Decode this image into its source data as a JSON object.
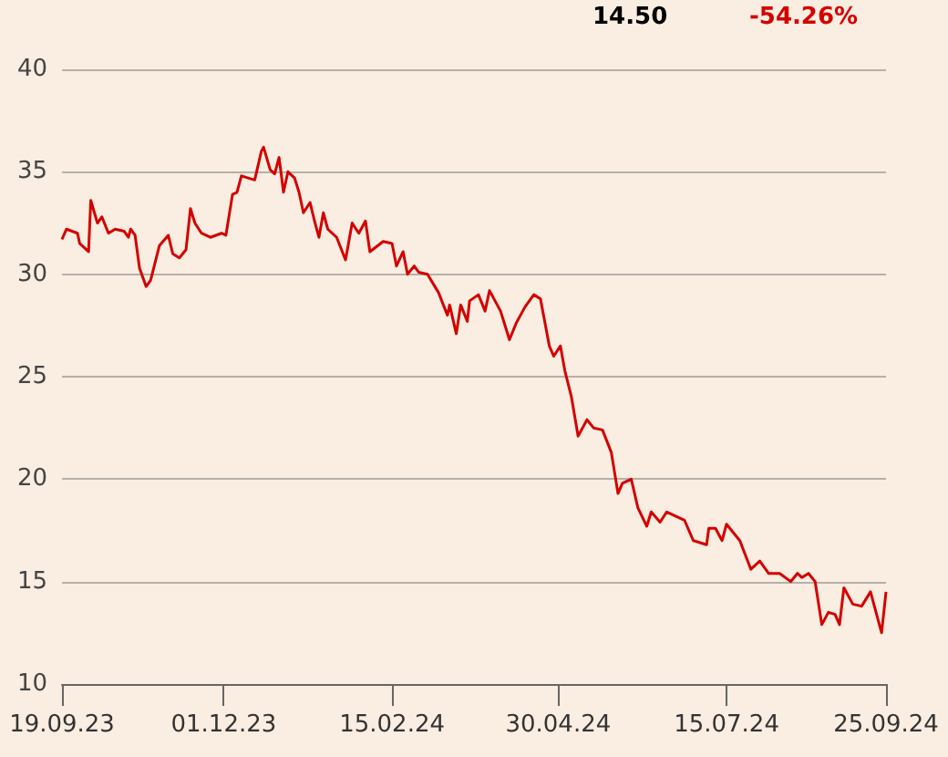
{
  "chart_data": {
    "type": "line",
    "annotations": [
      "14.50",
      "-54.26%"
    ],
    "xlim": [
      "2023-09-19",
      "2024-09-25"
    ],
    "xticks": [
      {
        "value": "2023-09-19",
        "label": "19.09.23"
      },
      {
        "value": "2023-12-01",
        "label": "01.12.23"
      },
      {
        "value": "2024-02-15",
        "label": "15.02.24"
      },
      {
        "value": "2024-04-30",
        "label": "30.04.24"
      },
      {
        "value": "2024-07-15",
        "label": "15.07.24"
      },
      {
        "value": "2024-09-25",
        "label": "25.09.24"
      }
    ],
    "ylim": [
      10,
      40
    ],
    "yticks": [
      10,
      15,
      20,
      25,
      30,
      35,
      40
    ],
    "grid": "y",
    "marker": "none",
    "line_style": "solid",
    "series": [
      {
        "color": "#d40000",
        "x": [
          "2023-09-19",
          "2023-09-21",
          "2023-09-26",
          "2023-09-27",
          "2023-10-01",
          "2023-10-02",
          "2023-10-05",
          "2023-10-07",
          "2023-10-10",
          "2023-10-13",
          "2023-10-17",
          "2023-10-19",
          "2023-10-20",
          "2023-10-22",
          "2023-10-24",
          "2023-10-27",
          "2023-10-29",
          "2023-11-02",
          "2023-11-06",
          "2023-11-08",
          "2023-11-11",
          "2023-11-14",
          "2023-11-16",
          "2023-11-18",
          "2023-11-21",
          "2023-11-25",
          "2023-11-30",
          "2023-12-02",
          "2023-12-05",
          "2023-12-07",
          "2023-12-09",
          "2023-12-15",
          "2023-12-18",
          "2023-12-19",
          "2023-12-22",
          "2023-12-24",
          "2023-12-26",
          "2023-12-28",
          "2023-12-30",
          "2024-01-02",
          "2024-01-04",
          "2024-01-06",
          "2024-01-09",
          "2024-01-11",
          "2024-01-13",
          "2024-01-15",
          "2024-01-17",
          "2024-01-21",
          "2024-01-25",
          "2024-01-28",
          "2024-01-31",
          "2024-02-03",
          "2024-02-05",
          "2024-02-11",
          "2024-02-15",
          "2024-02-17",
          "2024-02-20",
          "2024-02-22",
          "2024-02-25",
          "2024-02-27",
          "2024-03-02",
          "2024-03-07",
          "2024-03-11",
          "2024-03-12",
          "2024-03-15",
          "2024-03-17",
          "2024-03-20",
          "2024-03-21",
          "2024-03-25",
          "2024-03-28",
          "2024-03-30",
          "2024-04-04",
          "2024-04-08",
          "2024-04-11",
          "2024-04-15",
          "2024-04-19",
          "2024-04-22",
          "2024-04-26",
          "2024-04-28",
          "2024-05-01",
          "2024-05-03",
          "2024-05-06",
          "2024-05-09",
          "2024-05-13",
          "2024-05-16",
          "2024-05-20",
          "2024-05-24",
          "2024-05-27",
          "2024-05-29",
          "2024-06-02",
          "2024-06-05",
          "2024-06-09",
          "2024-06-11",
          "2024-06-15",
          "2024-06-18",
          "2024-06-26",
          "2024-06-30",
          "2024-07-06",
          "2024-07-07",
          "2024-07-10",
          "2024-07-13",
          "2024-07-15",
          "2024-07-21",
          "2024-07-26",
          "2024-07-30",
          "2024-08-03",
          "2024-08-08",
          "2024-08-13",
          "2024-08-16",
          "2024-08-18",
          "2024-08-21",
          "2024-08-24",
          "2024-08-27",
          "2024-08-30",
          "2024-09-02",
          "2024-09-04",
          "2024-09-06",
          "2024-09-10",
          "2024-09-14",
          "2024-09-18",
          "2024-09-23",
          "2024-09-25"
        ],
        "values": [
          31.7,
          32.2,
          32.0,
          31.5,
          31.1,
          33.6,
          32.5,
          32.8,
          32.0,
          32.2,
          32.1,
          31.8,
          32.2,
          31.9,
          30.3,
          29.4,
          29.7,
          31.4,
          31.9,
          31.0,
          30.8,
          31.2,
          33.2,
          32.5,
          32.0,
          31.8,
          32.0,
          31.9,
          33.9,
          34.0,
          34.8,
          34.6,
          36.0,
          36.2,
          35.1,
          34.9,
          35.7,
          34.0,
          35.0,
          34.7,
          34.0,
          33.0,
          33.5,
          32.6,
          31.8,
          33.0,
          32.2,
          31.8,
          30.7,
          32.5,
          32.0,
          32.6,
          31.1,
          31.6,
          31.5,
          30.4,
          31.1,
          30.0,
          30.4,
          30.1,
          30.0,
          29.1,
          28.0,
          28.5,
          27.1,
          28.5,
          27.7,
          28.7,
          29.0,
          28.2,
          29.2,
          28.2,
          26.8,
          27.6,
          28.4,
          29.0,
          28.8,
          26.5,
          26.0,
          26.5,
          25.3,
          24.0,
          22.1,
          22.9,
          22.5,
          22.4,
          21.3,
          19.3,
          19.8,
          20.0,
          18.6,
          17.7,
          18.4,
          17.9,
          18.4,
          18.0,
          17.0,
          16.8,
          17.6,
          17.6,
          17.0,
          17.8,
          17.0,
          15.6,
          16.0,
          15.4,
          15.4,
          15.0,
          15.4,
          15.2,
          15.4,
          15.0,
          12.9,
          13.5,
          13.4,
          12.9,
          14.7,
          13.9,
          13.8,
          14.5,
          12.5,
          14.5
        ]
      }
    ]
  }
}
